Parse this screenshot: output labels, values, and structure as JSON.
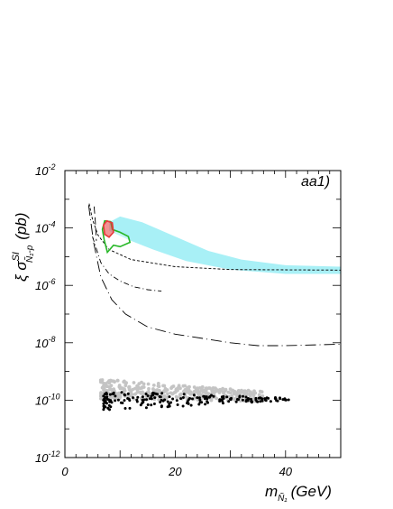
{
  "chart_data": {
    "type": "scatter",
    "panel_label": "aa1)",
    "xlabel": {
      "main": "m",
      "sub": "Ñ₁",
      "unit": "(GeV)"
    },
    "ylabel": {
      "prefix": "ξ σ",
      "sup": "SI",
      "sub": "Ñ₁-p",
      "unit": "(pb)"
    },
    "xlim": [
      0,
      50
    ],
    "ylim_log10": [
      -12,
      -2
    ],
    "log_y": true,
    "x_ticks": [
      {
        "value": 0,
        "label": "0"
      },
      {
        "value": 20,
        "label": "20"
      },
      {
        "value": 40,
        "label": "40"
      }
    ],
    "y_ticks": [
      {
        "exp": -12,
        "base": "10",
        "power": "-12"
      },
      {
        "exp": -10,
        "base": "10",
        "power": "-10"
      },
      {
        "exp": -8,
        "base": "10",
        "power": "-8"
      },
      {
        "exp": -6,
        "base": "10",
        "power": "-6"
      },
      {
        "exp": -4,
        "base": "10",
        "power": "-4"
      },
      {
        "exp": -2,
        "base": "10",
        "power": "-2"
      }
    ],
    "colors": {
      "band": "#a8f0f6",
      "red": "#e8383a",
      "green": "#28b828",
      "grey_points": "#c4c4c4",
      "black_points": "#000000"
    },
    "band": {
      "upper": [
        [
          8,
          -3.8
        ],
        [
          10,
          -3.6
        ],
        [
          14,
          -3.8
        ],
        [
          20,
          -4.3
        ],
        [
          26,
          -4.8
        ],
        [
          32,
          -5.1
        ],
        [
          40,
          -5.3
        ],
        [
          50,
          -5.35
        ]
      ],
      "lower": [
        [
          8,
          -4.1
        ],
        [
          12,
          -4.45
        ],
        [
          16,
          -4.75
        ],
        [
          22,
          -5.15
        ],
        [
          30,
          -5.45
        ],
        [
          40,
          -5.6
        ],
        [
          50,
          -5.6
        ]
      ]
    },
    "green_region": [
      [
        7.2,
        -3.75
      ],
      [
        8.3,
        -3.78
      ],
      [
        8.6,
        -4.05
      ],
      [
        10.0,
        -4.15
      ],
      [
        11.5,
        -4.3
      ],
      [
        11.8,
        -4.5
      ],
      [
        10.0,
        -4.65
      ],
      [
        8.8,
        -4.6
      ],
      [
        7.7,
        -4.85
      ],
      [
        7.1,
        -4.4
      ],
      [
        6.8,
        -4.05
      ]
    ],
    "red_region": [
      [
        7.0,
        -3.9
      ],
      [
        7.6,
        -3.75
      ],
      [
        8.6,
        -3.82
      ],
      [
        8.8,
        -4.15
      ],
      [
        8.0,
        -4.32
      ],
      [
        7.2,
        -4.22
      ]
    ],
    "curves": [
      {
        "style": "dashed",
        "points": [
          [
            4.4,
            -3.15
          ],
          [
            5.0,
            -3.7
          ],
          [
            6.0,
            -4.25
          ],
          [
            8.0,
            -4.75
          ],
          [
            12.0,
            -5.1
          ],
          [
            20.0,
            -5.35
          ],
          [
            30.0,
            -5.45
          ],
          [
            50.0,
            -5.47
          ]
        ]
      },
      {
        "style": "longdash",
        "points": [
          [
            5.3,
            -3.25
          ],
          [
            5.5,
            -3.75
          ],
          [
            5.7,
            -4.45
          ]
        ]
      },
      {
        "style": "dashdot",
        "points": [
          [
            5.0,
            -4.3
          ],
          [
            6.5,
            -5.2
          ],
          [
            8.0,
            -5.6
          ],
          [
            10.0,
            -5.85
          ],
          [
            12.5,
            -6.05
          ],
          [
            15.0,
            -6.15
          ],
          [
            17.5,
            -6.2
          ]
        ]
      },
      {
        "style": "longdashdot",
        "points": [
          [
            4.3,
            -3.2
          ],
          [
            5.2,
            -4.5
          ],
          [
            6.5,
            -5.7
          ],
          [
            8.5,
            -6.5
          ],
          [
            11.0,
            -7.0
          ],
          [
            15.0,
            -7.45
          ],
          [
            20.0,
            -7.7
          ],
          [
            25.0,
            -7.85
          ],
          [
            30.0,
            -8.0
          ],
          [
            35.0,
            -8.1
          ],
          [
            40.0,
            -8.1
          ],
          [
            50.0,
            -8.05
          ]
        ]
      }
    ],
    "grey_points_range": {
      "x": [
        6.5,
        36
      ],
      "log10_upper": [
        -9.25,
        -9.7
      ],
      "log10_lower": [
        -9.95,
        -10.05
      ]
    },
    "black_points_range": {
      "x": [
        7.0,
        41
      ],
      "log10": [
        -9.7,
        -10.4
      ]
    }
  }
}
